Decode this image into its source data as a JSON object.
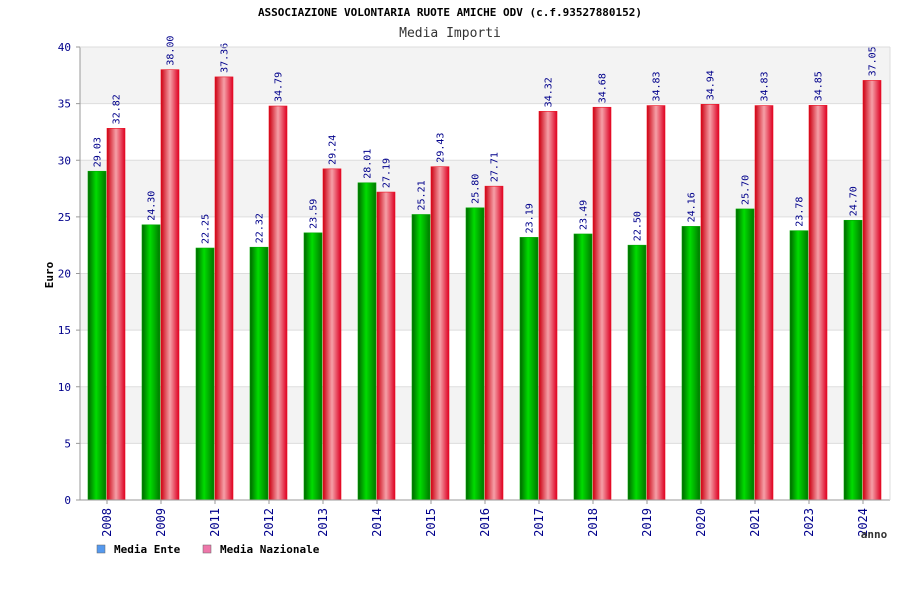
{
  "chart_data": {
    "type": "bar",
    "title": "ASSOCIAZIONE VOLONTARIA RUOTE AMICHE ODV (c.f.93527880152)",
    "subtitle": "Media Importi",
    "xlabel": "anno",
    "ylabel": "Euro",
    "ylim": [
      0,
      40
    ],
    "yticks": [
      0,
      5,
      10,
      15,
      20,
      25,
      30,
      35,
      40
    ],
    "grid": true,
    "legend_position": "bottom-left",
    "categories": [
      "2008",
      "2009",
      "2011",
      "2012",
      "2013",
      "2014",
      "2015",
      "2016",
      "2017",
      "2018",
      "2019",
      "2020",
      "2021",
      "2023",
      "2024"
    ],
    "series": [
      {
        "name": "Media Ente",
        "color": "#00aa00",
        "legend_color": "#5599ee",
        "values": [
          29.03,
          24.3,
          22.25,
          22.32,
          23.59,
          28.01,
          25.21,
          25.8,
          23.19,
          23.49,
          22.5,
          24.16,
          25.7,
          23.78,
          24.7
        ],
        "labels": [
          "29.03",
          "24.30",
          "22.25",
          "22.32",
          "23.59",
          "28.01",
          "25.21",
          "25.80",
          "23.19",
          "23.49",
          "22.50",
          "24.16",
          "25.70",
          "23.78",
          "24.70"
        ]
      },
      {
        "name": "Media Nazionale",
        "color": "#ee1122",
        "legend_color": "#ee77aa",
        "values": [
          32.82,
          38.0,
          37.36,
          34.79,
          29.24,
          27.19,
          29.43,
          27.71,
          34.32,
          34.68,
          34.83,
          34.94,
          34.83,
          34.85,
          37.05
        ],
        "labels": [
          "32.82",
          "38.00",
          "37.36",
          "34.79",
          "29.24",
          "27.19",
          "29.43",
          "27.71",
          "34.32",
          "34.68",
          "34.83",
          "34.94",
          "34.83",
          "34.85",
          "37.05"
        ]
      }
    ]
  }
}
